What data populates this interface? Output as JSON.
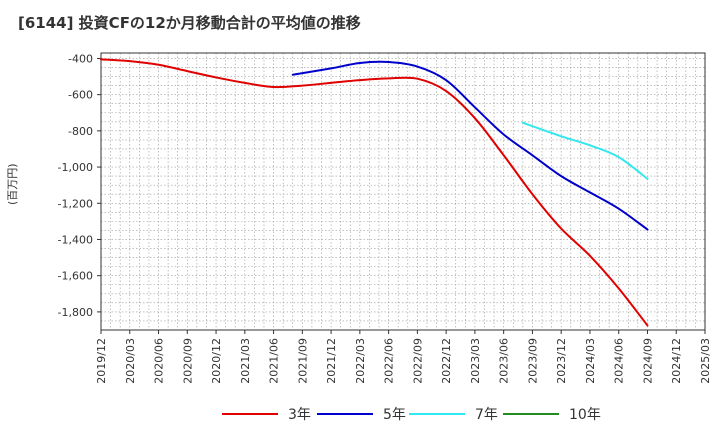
{
  "title": "[6144]  投資CFの12か月移動合計の平均値の推移",
  "chart_data": {
    "type": "line",
    "title": "[6144]  投資CFの12か月移動合計の平均値の推移",
    "ylabel": "(百万円)",
    "xlabel": "",
    "ylim": [
      -1900,
      -370
    ],
    "yticks": [
      -400,
      -600,
      -800,
      -1000,
      -1200,
      -1400,
      -1600,
      -1800
    ],
    "ytick_labels": [
      "-400",
      "-600",
      "-800",
      "-1,000",
      "-1,200",
      "-1,400",
      "-1,600",
      "-1,800"
    ],
    "x": [
      "2019/12",
      "2020/03",
      "2020/06",
      "2020/09",
      "2020/12",
      "2021/03",
      "2021/06",
      "2021/09",
      "2021/12",
      "2022/03",
      "2022/06",
      "2022/09",
      "2022/12",
      "2023/03",
      "2023/06",
      "2023/09",
      "2023/12",
      "2024/03",
      "2024/06",
      "2024/09",
      "2024/12",
      "2025/03"
    ],
    "grid": true,
    "legend_position": "bottom",
    "series": [
      {
        "name": "3年",
        "color": "#e00000",
        "x": [
          "2019/12",
          "2020/03",
          "2020/06",
          "2020/09",
          "2020/12",
          "2021/03",
          "2021/06",
          "2021/09",
          "2021/12",
          "2022/03",
          "2022/06",
          "2022/09",
          "2022/12",
          "2023/03",
          "2023/06",
          "2023/09",
          "2023/12",
          "2024/03",
          "2024/06",
          "2024/09"
        ],
        "values": [
          -405,
          -415,
          -435,
          -470,
          -505,
          -535,
          -558,
          -550,
          -535,
          -520,
          -510,
          -512,
          -580,
          -730,
          -935,
          -1150,
          -1340,
          -1490,
          -1670,
          -1875
        ]
      },
      {
        "name": "5年",
        "color": "#0000cc",
        "x": [
          "2021/08",
          "2021/12",
          "2022/03",
          "2022/06",
          "2022/09",
          "2022/12",
          "2023/03",
          "2023/06",
          "2023/09",
          "2023/12",
          "2024/03",
          "2024/06",
          "2024/09"
        ],
        "values": [
          -490,
          -455,
          -425,
          -420,
          -445,
          -520,
          -670,
          -820,
          -935,
          -1050,
          -1140,
          -1230,
          -1345
        ]
      },
      {
        "name": "7年",
        "color": "#33e8ee",
        "x": [
          "2023/08",
          "2023/12",
          "2024/03",
          "2024/06",
          "2024/09"
        ],
        "values": [
          -755,
          -830,
          -880,
          -945,
          -1065
        ]
      },
      {
        "name": "10年",
        "color": "#228b22",
        "x": [],
        "values": []
      }
    ]
  }
}
